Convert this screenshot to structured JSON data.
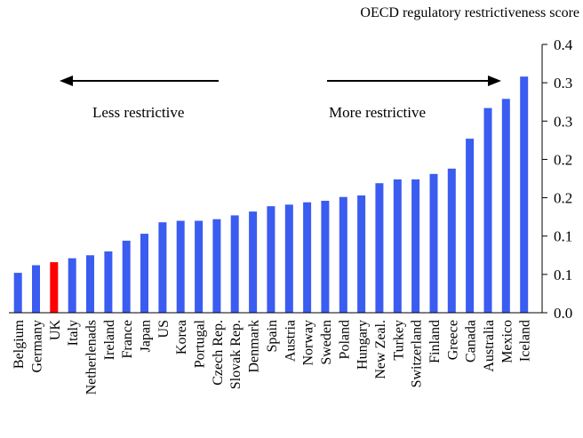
{
  "chart_data": {
    "type": "bar",
    "title": "",
    "ylabel": "OECD regulatory restrictiveness score",
    "xlabel": "",
    "ylim": [
      0,
      0.35
    ],
    "y_axis_side": "right",
    "y_tick_labels": [
      "0.0",
      "0.1",
      "0.1",
      "0.2",
      "0.2",
      "0.3",
      "0.3",
      "0.4"
    ],
    "categories": [
      "Belgium",
      "Germany",
      "UK",
      "Italy",
      "Netherlenads",
      "Ireland",
      "France",
      "Japan",
      "US",
      "Korea",
      "Portugal",
      "Czech Rep.",
      "Slovak Rep.",
      "Denmark",
      "Spain",
      "Austria",
      "Norway",
      "Sweden",
      "Poland",
      "Hungary",
      "New Zeal.",
      "Turkey",
      "Switzerland",
      "Finland",
      "Greece",
      "Canada",
      "Australia",
      "Mexico",
      "Iceland"
    ],
    "values": [
      0.052,
      0.062,
      0.066,
      0.071,
      0.075,
      0.08,
      0.094,
      0.103,
      0.118,
      0.12,
      0.12,
      0.122,
      0.127,
      0.132,
      0.139,
      0.141,
      0.144,
      0.146,
      0.151,
      0.153,
      0.169,
      0.174,
      0.174,
      0.181,
      0.188,
      0.227,
      0.267,
      0.279,
      0.308
    ],
    "colors": {
      "default": "#3b5cf0",
      "highlight": "#ff0000"
    },
    "highlight_category": "UK",
    "grid": false,
    "annotations": {
      "left_arrow_label": "Less restrictive",
      "right_arrow_label": "More restrictive"
    }
  }
}
